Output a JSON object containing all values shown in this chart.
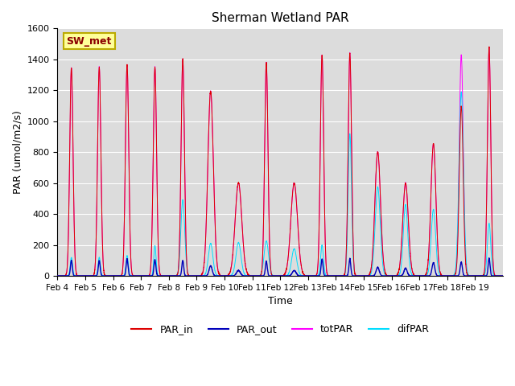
{
  "title": "Sherman Wetland PAR",
  "xlabel": "Time",
  "ylabel": "PAR (umol/m2/s)",
  "label_box": "SW_met",
  "ylim": [
    0,
    1600
  ],
  "yticks": [
    0,
    200,
    400,
    600,
    800,
    1000,
    1200,
    1400,
    1600
  ],
  "xtick_labels": [
    "Feb 4",
    "Feb 5",
    "Feb 6",
    "Feb 7",
    "Feb 8",
    "Feb 9",
    "Feb 10",
    "Feb 11",
    "Feb 12",
    "Feb 13",
    "Feb 14",
    "Feb 15",
    "Feb 16",
    "Feb 17",
    "Feb 18",
    "Feb 19"
  ],
  "colors": {
    "PAR_in": "#dd0000",
    "PAR_out": "#0000bb",
    "totPAR": "#ff00ff",
    "difPAR": "#00ddff"
  },
  "background_color": "#dcdcdc",
  "fig_bg": "#ffffff",
  "n_days": 16,
  "points_per_day": 288,
  "par_in_peaks": [
    1345,
    1350,
    1365,
    1350,
    1405,
    1195,
    600,
    1380,
    600,
    1430,
    1440,
    800,
    600,
    855,
    1095,
    1480
  ],
  "par_out_peaks": [
    100,
    100,
    110,
    105,
    100,
    65,
    35,
    95,
    35,
    110,
    110,
    55,
    50,
    85,
    90,
    115
  ],
  "tot_par_peaks": [
    1345,
    1350,
    1365,
    1350,
    1405,
    1195,
    600,
    1380,
    600,
    1430,
    1440,
    800,
    600,
    855,
    1430,
    1480
  ],
  "dif_par_peaks": [
    120,
    120,
    130,
    195,
    490,
    210,
    215,
    225,
    175,
    200,
    920,
    575,
    460,
    430,
    1190,
    340
  ],
  "peak_widths_in": [
    0.06,
    0.06,
    0.06,
    0.06,
    0.06,
    0.1,
    0.12,
    0.06,
    0.12,
    0.06,
    0.06,
    0.1,
    0.1,
    0.09,
    0.07,
    0.06
  ],
  "peak_widths_dif": [
    0.04,
    0.04,
    0.04,
    0.04,
    0.07,
    0.08,
    0.09,
    0.08,
    0.09,
    0.05,
    0.06,
    0.09,
    0.08,
    0.08,
    0.08,
    0.06
  ]
}
